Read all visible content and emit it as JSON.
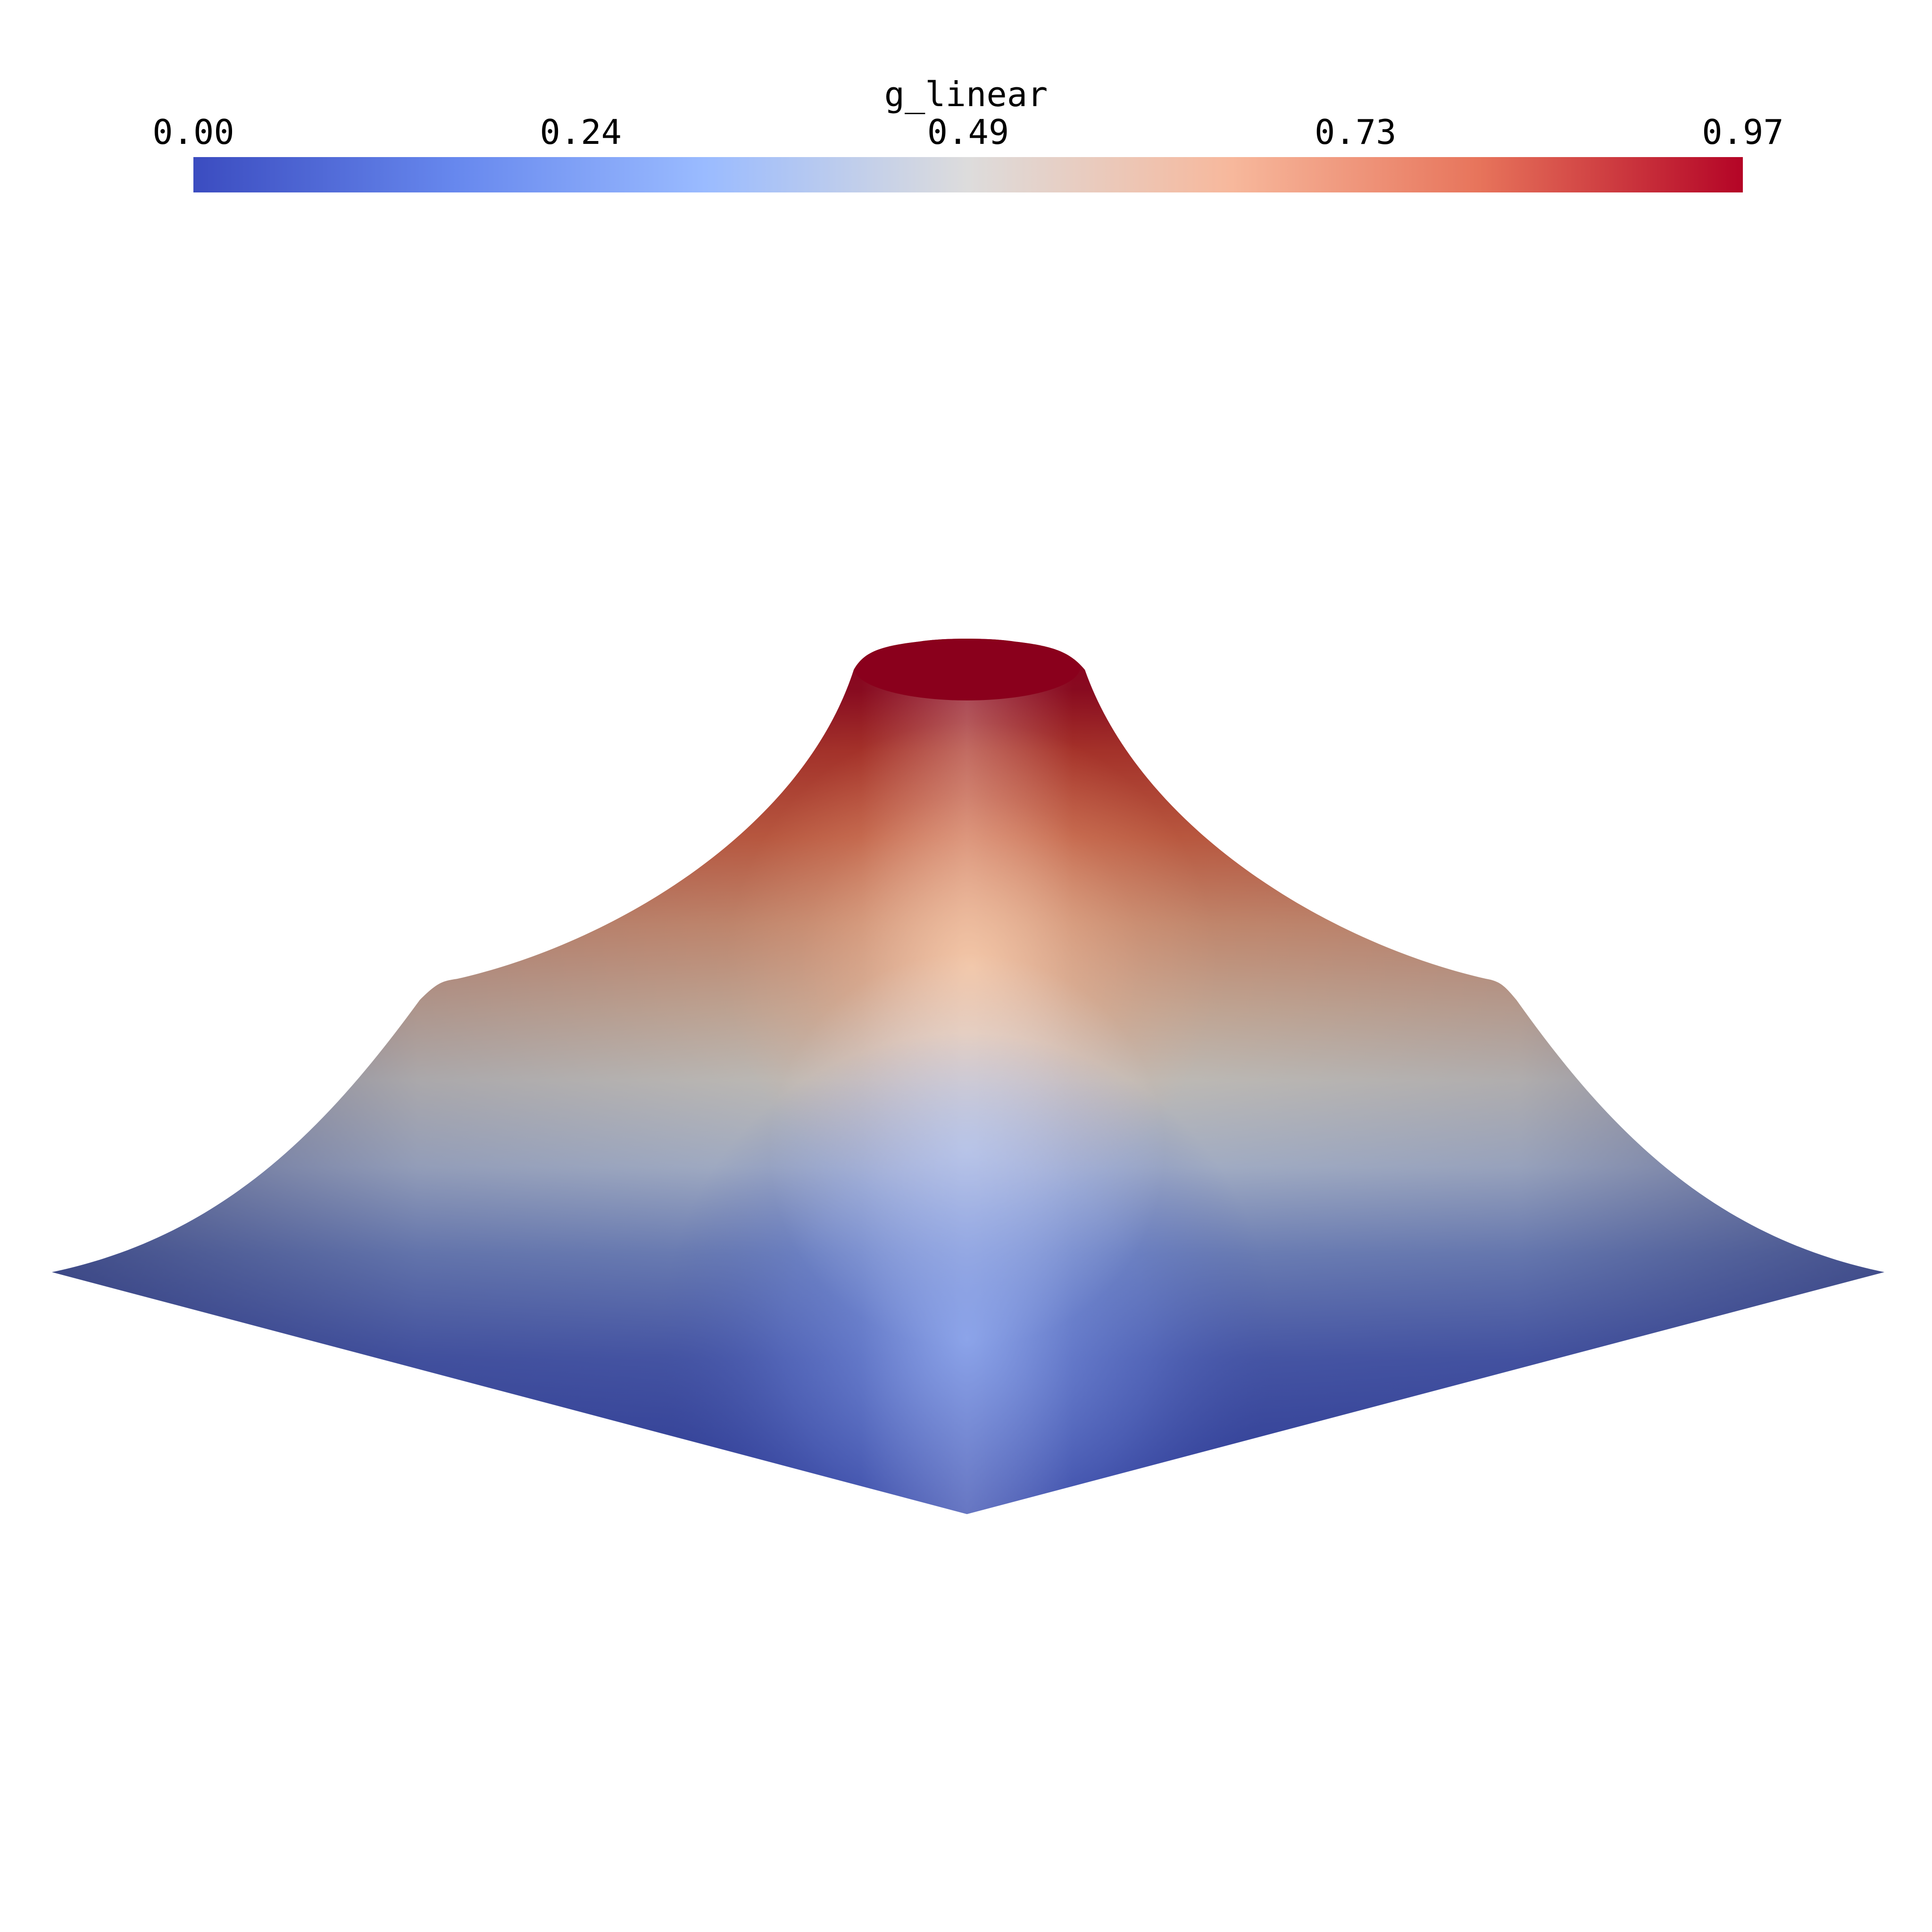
{
  "colorbar": {
    "title": "g_linear",
    "min": 0.0,
    "max": 0.97,
    "tick_labels": [
      "0.00",
      "0.24",
      "0.49",
      "0.73",
      "0.97"
    ],
    "colors": [
      "#3b4cc0",
      "#7b9ff9",
      "#c0d4f5",
      "#dddcdc",
      "#f2cbb7",
      "#ee8468",
      "#b40426"
    ]
  },
  "surface": {
    "description_colors": {
      "low": "#2e3a8c",
      "mid": "#dcd6d0",
      "high": "#8e001f"
    }
  }
}
